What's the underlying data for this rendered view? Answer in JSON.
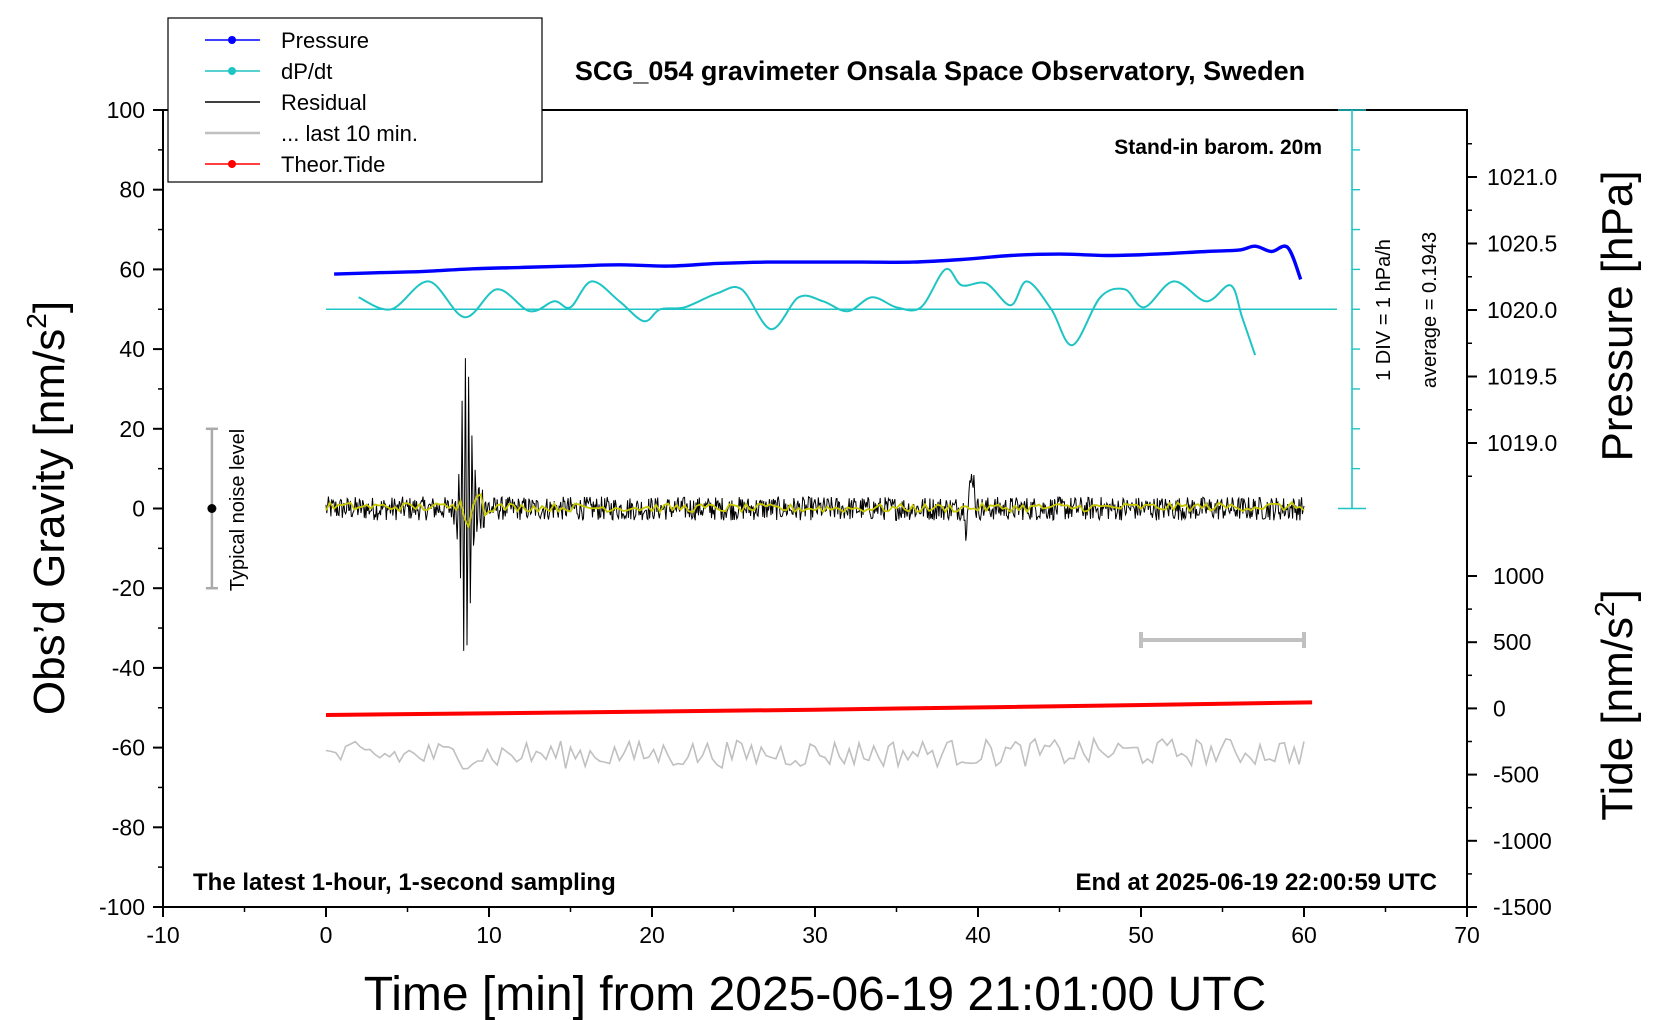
{
  "chart_data": {
    "type": "line",
    "title": "SCG_054 gravimeter Onsala Space Observatory, Sweden",
    "xlabel": "Time [min] from 2025-06-19 21:01:00 UTC",
    "ylabel_left": "Obs’d Gravity [nm/s²]",
    "ylabel_left_main": "Obs’d Gravity [nm/s",
    "ylabel_left_sup": "2",
    "ylabel_left_end": "]",
    "ylabel_right_top": "Pressure [hPa]",
    "ylabel_right_bottom": "Tide [nm/s²]",
    "ylabel_right_bottom_main": "Tide [nm/s",
    "ylabel_right_bottom_sup": "2",
    "ylabel_right_bottom_end": "]",
    "xlim": [
      -10,
      70
    ],
    "ylim_left": [
      -100,
      100
    ],
    "x_ticks": [
      -10,
      0,
      10,
      20,
      30,
      40,
      50,
      60,
      70
    ],
    "x_tick_labels": [
      "-10",
      "0",
      "10",
      "20",
      "30",
      "40",
      "50",
      "60",
      "70"
    ],
    "y_ticks": [
      -100,
      -80,
      -60,
      -40,
      -20,
      0,
      20,
      40,
      60,
      80,
      100
    ],
    "y_tick_labels": [
      "-100",
      "-80",
      "-60",
      "-40",
      "-20",
      "0",
      "20",
      "40",
      "60",
      "80",
      "100"
    ],
    "pressure_ticks": [
      1019.0,
      1019.5,
      1020.0,
      1020.5,
      1021.0
    ],
    "pressure_tick_labels": [
      "1019.0",
      "1019.5",
      "1020.0",
      "1020.5",
      "1021.0"
    ],
    "tide_ticks": [
      -1500,
      -1000,
      -500,
      0,
      500,
      1000
    ],
    "tide_tick_labels": [
      "-1500",
      "-1000",
      "-500",
      "0",
      "500",
      "1000"
    ],
    "legend": {
      "placement": "top-left",
      "entries": [
        {
          "label": "Pressure",
          "color": "#0000ff",
          "marker": true
        },
        {
          "label": "dP/dt",
          "color": "#1fc4c4",
          "marker": true
        },
        {
          "label": "Residual",
          "color": "#000000",
          "marker": false
        },
        {
          "label": "... last 10 min.",
          "color": "#c0c0c0",
          "marker": false
        },
        {
          "label": "Theor.Tide",
          "color": "#ff0000",
          "marker": true
        }
      ]
    },
    "annotations": {
      "stand_in": "Stand-in barom. 20m",
      "div_label": "1 DIV = 1 hPa/h",
      "average_label": "average = 0.1943",
      "noise_label": "Typical noise level",
      "bottom_left": "The latest 1-hour, 1-second sampling",
      "bottom_right": "End at 2025-06-19 22:00:59 UTC"
    },
    "noise_bar": {
      "x": -7,
      "center": 0,
      "low": -20,
      "high": 20
    },
    "last10_marker": {
      "x_start": 50,
      "x_end": 60,
      "gravity_level": -33
    },
    "series": [
      {
        "name": "Pressure",
        "axis": "pressure",
        "color": "#0000ff",
        "x": [
          0.5,
          3,
          6,
          9,
          12,
          15,
          18,
          21,
          24,
          27,
          30,
          33,
          36,
          39,
          42,
          45,
          48,
          51,
          54,
          56,
          57,
          58,
          59,
          59.8
        ],
        "values": [
          1020.27,
          1020.28,
          1020.29,
          1020.31,
          1020.32,
          1020.33,
          1020.34,
          1020.33,
          1020.35,
          1020.36,
          1020.36,
          1020.36,
          1020.36,
          1020.38,
          1020.41,
          1020.42,
          1020.41,
          1020.42,
          1020.44,
          1020.45,
          1020.48,
          1020.44,
          1020.47,
          1020.23
        ]
      },
      {
        "name": "dP/dt",
        "axis": "gravity_display",
        "color": "#1fc4c4",
        "baseline": 50,
        "x": [
          2,
          4,
          6.3,
          8.5,
          10.5,
          12.5,
          14,
          15,
          16.3,
          18,
          19.5,
          20.5,
          22,
          24,
          25.5,
          27.3,
          29,
          30.5,
          32,
          33.5,
          35,
          36.5,
          38,
          39,
          40.5,
          42,
          43,
          44.5,
          45.8,
          47.5,
          49,
          50.2,
          52,
          54,
          55.5,
          56.2,
          57
        ],
        "values": [
          53,
          50,
          57,
          48,
          55,
          49.5,
          52,
          50.5,
          57,
          52,
          47,
          50,
          50.5,
          54,
          55,
          45,
          53,
          52,
          49.5,
          53,
          50.5,
          50.5,
          60,
          56,
          56.5,
          51,
          57,
          50,
          41,
          53,
          55,
          50.5,
          57,
          52,
          56,
          48,
          38.5
        ]
      },
      {
        "name": "Residual",
        "axis": "gravity",
        "color": "#000000",
        "x": [
          0,
          8,
          8.3,
          8.5,
          8.7,
          9,
          9.5,
          10,
          39.3,
          39.5,
          39.7,
          60
        ],
        "values": [
          0,
          3,
          35,
          -37,
          39,
          -32,
          12,
          2,
          8,
          -9,
          3,
          1
        ],
        "noise_amplitude": 3
      },
      {
        "name": "Residual (smoothed)",
        "axis": "gravity",
        "color": "#c8c800",
        "x": [
          0,
          30,
          60
        ],
        "values": [
          0.5,
          0,
          0.5
        ]
      },
      {
        "name": "... last 10 min.",
        "axis": "gravity",
        "color": "#c0c0c0",
        "x": [
          0,
          60
        ],
        "values": [
          -62,
          -61
        ]
      },
      {
        "name": "Theor.Tide",
        "axis": "tide",
        "color": "#ff0000",
        "x": [
          0,
          30,
          60.5
        ],
        "values": [
          -50,
          -10,
          45
        ]
      }
    ]
  }
}
